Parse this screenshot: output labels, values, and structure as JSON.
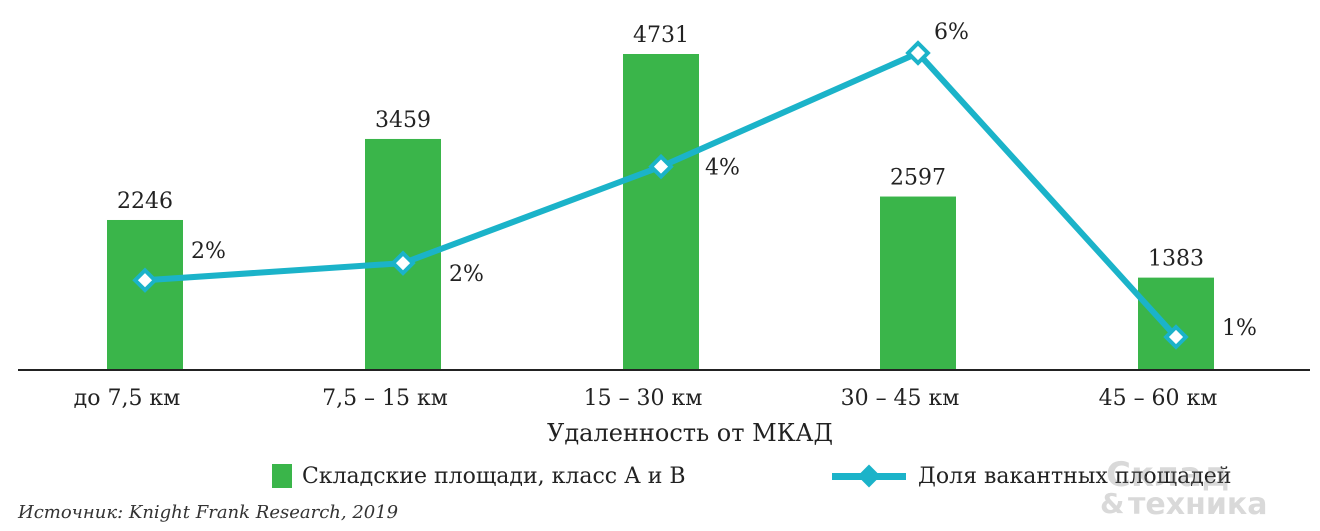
{
  "chart_data": {
    "type": "bar",
    "xlabel": "Удаленность от МКАД",
    "categories": [
      "до 7,5 км",
      "7,5 – 15 км",
      "15 – 30 км",
      "30 – 45 км",
      "45 – 60 км"
    ],
    "series": [
      {
        "name": "Складские площади, класс А и В",
        "type": "bar",
        "values": [
          2246,
          3459,
          4731,
          2597,
          1383
        ],
        "labels": [
          "2246",
          "3459",
          "4731",
          "2597",
          "1383"
        ],
        "color": "#3ab54a"
      },
      {
        "name": "Доля вакантных площадей",
        "type": "line",
        "values": [
          2,
          2.3,
          4,
          6,
          1
        ],
        "labels": [
          "2%",
          "2%",
          "4%",
          "6%",
          "1%"
        ],
        "color": "#1bb3c9"
      }
    ],
    "ylim_bar": [
      0,
      4731
    ],
    "ylim_line": [
      0,
      6
    ],
    "grid": false,
    "legend": "bottom"
  },
  "source": "Источник: Knight Frank Research, 2019",
  "watermark": {
    "line1": "Склад",
    "amp": "&",
    "line2": "техника"
  }
}
